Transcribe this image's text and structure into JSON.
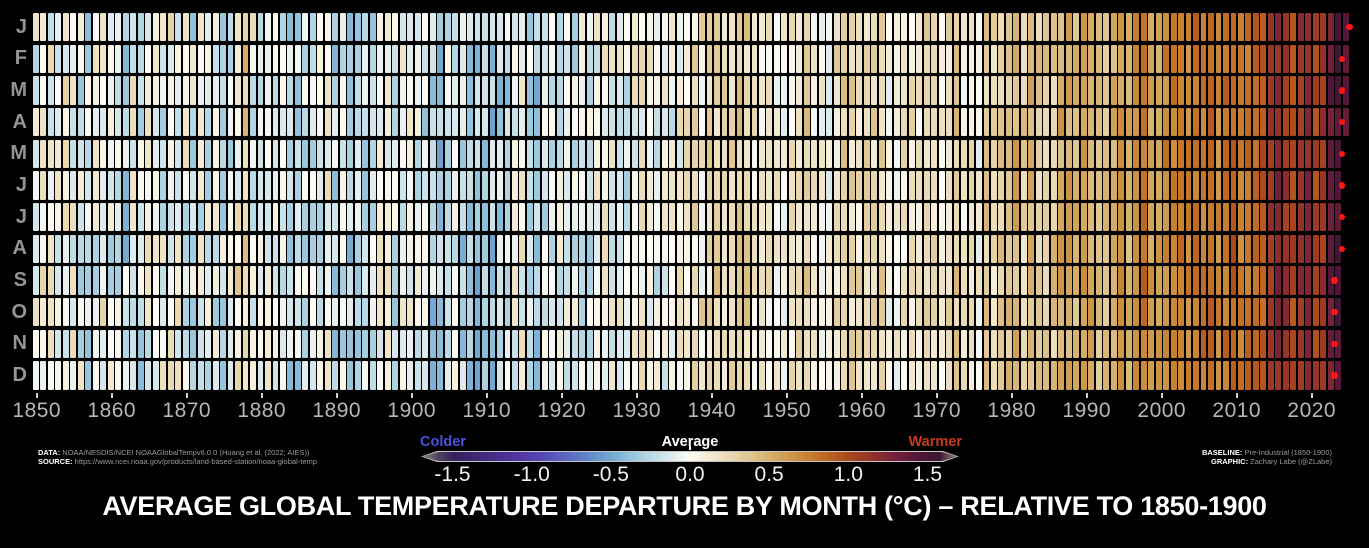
{
  "figure": {
    "background": "#000000",
    "title": "AVERAGE GLOBAL TEMPERATURE DEPARTURE BY MONTH (°C) – RELATIVE TO 1850-1900"
  },
  "credits": {
    "data_label": "DATA:",
    "data_value": " NOAA/NESDIS/NCEI NOAAGlobalTempv6.0.0 (Huang et al. (2022; AIES))",
    "source_label": "SOURCE:",
    "source_value": " https://www.ncei.noaa.gov/products/land-based-station/noaa-global-temp",
    "baseline_label": "BASELINE:",
    "baseline_value": " Pre-Industrial (1850-1900)",
    "graphic_label": "GRAPHIC:",
    "graphic_value": " Zachary Labe (@ZLabe)"
  },
  "colorbar": {
    "colder_label": "Colder",
    "average_label": "Average",
    "warmer_label": "Warmer",
    "colder_color": "#4a52de",
    "average_color": "#ffffff",
    "warmer_color": "#c93a1c",
    "tick_labels": [
      "-1.5",
      "-1.0",
      "-0.5",
      "0.0",
      "0.5",
      "1.0",
      "1.5"
    ],
    "tick_values": [
      -1.5,
      -1.0,
      -0.5,
      0.0,
      0.5,
      1.0,
      1.5
    ],
    "value_min": -1.7,
    "value_max": 1.7,
    "stops": [
      [
        -1.7,
        "#8c8c8c"
      ],
      [
        -1.6,
        "#4f4660"
      ],
      [
        -1.5,
        "#362158"
      ],
      [
        -1.3,
        "#44297f"
      ],
      [
        -1.1,
        "#50339f"
      ],
      [
        -0.95,
        "#5545b5"
      ],
      [
        -0.8,
        "#5a63c2"
      ],
      [
        -0.65,
        "#5f87c7"
      ],
      [
        -0.5,
        "#72a9d2"
      ],
      [
        -0.35,
        "#9cc8dd"
      ],
      [
        -0.2,
        "#c6e0e8"
      ],
      [
        -0.1,
        "#e3edee"
      ],
      [
        0.0,
        "#fdfcf5"
      ],
      [
        0.1,
        "#f4eeda"
      ],
      [
        0.25,
        "#e9d9b2"
      ],
      [
        0.4,
        "#ddc189"
      ],
      [
        0.55,
        "#d4a75f"
      ],
      [
        0.7,
        "#ca8a3a"
      ],
      [
        0.85,
        "#c06a22"
      ],
      [
        1.0,
        "#ab4a1d"
      ],
      [
        1.15,
        "#93322a"
      ],
      [
        1.3,
        "#75203a"
      ],
      [
        1.45,
        "#521539"
      ],
      [
        1.58,
        "#3a1630"
      ],
      [
        1.7,
        "#8c8c8c"
      ]
    ]
  },
  "chart_data": {
    "type": "heatmap",
    "title": "AVERAGE GLOBAL TEMPERATURE DEPARTURE BY MONTH (°C) – RELATIVE TO 1850-1900",
    "unit": "°C relative to 1850-1900",
    "months": [
      "J",
      "F",
      "M",
      "A",
      "M",
      "J",
      "J",
      "A",
      "S",
      "O",
      "N",
      "D"
    ],
    "x_tick_years": [
      1850,
      1860,
      1870,
      1880,
      1890,
      1900,
      1910,
      1920,
      1930,
      1940,
      1950,
      1960,
      1970,
      1980,
      1990,
      2000,
      2010,
      2020
    ],
    "start_year": 1850,
    "end_year_all_months": 2024,
    "partial_end_year": 2025,
    "partial_month_indices": [
      0,
      1,
      2,
      3
    ],
    "record_year_by_month": [
      2025,
      2024,
      2024,
      2024,
      2024,
      2024,
      2024,
      2024,
      2023,
      2023,
      2023,
      2023
    ],
    "record_dot_color": "#fb1616",
    "annual_anomaly_estimate_c": [
      -0.05,
      0.02,
      0.05,
      0.05,
      0.03,
      -0.02,
      -0.1,
      -0.18,
      -0.08,
      0.03,
      -0.1,
      -0.05,
      -0.22,
      -0.02,
      -0.15,
      -0.02,
      0.03,
      -0.05,
      0.02,
      0.0,
      -0.03,
      -0.12,
      -0.05,
      -0.08,
      -0.12,
      -0.15,
      -0.12,
      0.12,
      0.28,
      -0.03,
      -0.03,
      0.0,
      -0.02,
      -0.12,
      -0.22,
      -0.2,
      -0.15,
      -0.2,
      -0.1,
      0.02,
      -0.25,
      -0.15,
      -0.28,
      -0.25,
      -0.22,
      -0.18,
      -0.02,
      0.0,
      -0.18,
      -0.05,
      0.0,
      -0.08,
      -0.18,
      -0.28,
      -0.32,
      -0.18,
      -0.12,
      -0.28,
      -0.3,
      -0.32,
      -0.28,
      -0.33,
      -0.25,
      -0.22,
      -0.02,
      0.02,
      -0.22,
      -0.35,
      -0.18,
      -0.08,
      -0.08,
      -0.02,
      -0.12,
      -0.08,
      -0.12,
      -0.02,
      0.08,
      -0.02,
      0.0,
      -0.18,
      0.02,
      0.08,
      0.05,
      -0.08,
      0.02,
      -0.02,
      0.05,
      0.15,
      0.2,
      0.15,
      0.22,
      0.3,
      0.25,
      0.25,
      0.35,
      0.28,
      0.12,
      0.12,
      0.12,
      0.08,
      0.02,
      0.15,
      0.25,
      0.3,
      0.1,
      0.05,
      0.0,
      0.22,
      0.3,
      0.25,
      0.18,
      0.25,
      0.25,
      0.25,
      0.02,
      0.05,
      0.15,
      0.15,
      0.12,
      0.25,
      0.2,
      0.1,
      0.2,
      0.32,
      0.1,
      0.15,
      0.05,
      0.32,
      0.25,
      0.35,
      0.42,
      0.48,
      0.3,
      0.48,
      0.32,
      0.3,
      0.35,
      0.5,
      0.52,
      0.42,
      0.58,
      0.55,
      0.4,
      0.42,
      0.5,
      0.62,
      0.5,
      0.68,
      0.8,
      0.58,
      0.58,
      0.72,
      0.78,
      0.78,
      0.72,
      0.82,
      0.78,
      0.82,
      0.7,
      0.82,
      0.9,
      0.75,
      0.8,
      0.85,
      0.92,
      1.1,
      1.22,
      1.12,
      1.0,
      1.15,
      1.22,
      1.05,
      1.1,
      1.35,
      1.47,
      1.45
    ],
    "values_note": "Monthly cells read from chart as annual anomaly with small per-month variation; colors span colorbar from -1.5 (colder, blue/purple) to +1.5 (warmer, dark maroon). Red dots mark record-warm year of each month row."
  }
}
